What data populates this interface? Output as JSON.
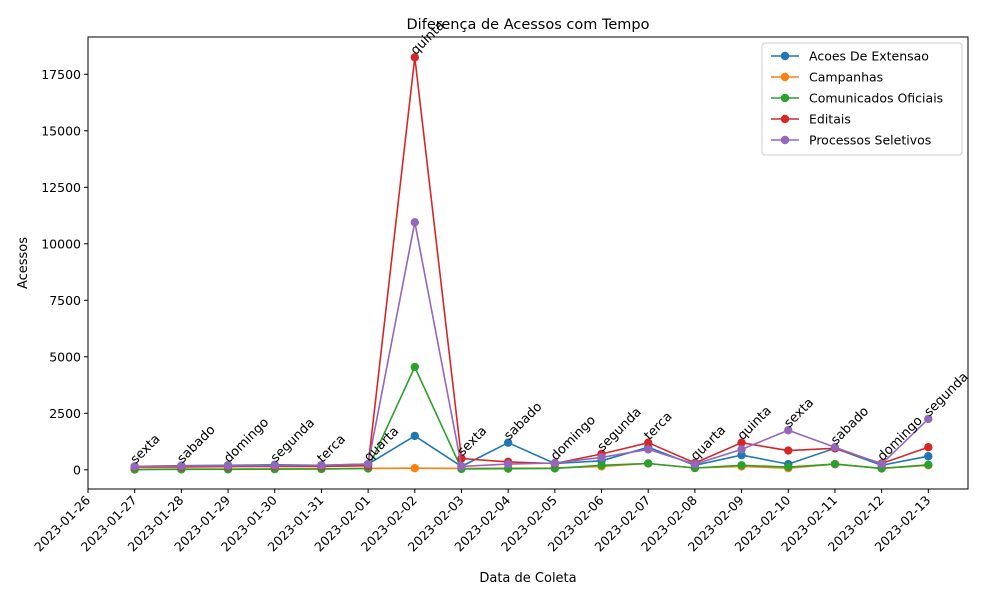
{
  "chart_data": {
    "type": "line",
    "title": "Diferença de Acessos com Tempo",
    "xlabel": "Data de Coleta",
    "ylabel": "Acessos",
    "x_ticks": [
      "2023-01-26",
      "2023-01-27",
      "2023-01-28",
      "2023-01-29",
      "2023-01-30",
      "2023-01-31",
      "2023-02-01",
      "2023-02-02",
      "2023-02-03",
      "2023-02-04",
      "2023-02-05",
      "2023-02-06",
      "2023-02-07",
      "2023-02-08",
      "2023-02-09",
      "2023-02-10",
      "2023-02-11",
      "2023-02-12",
      "2023-02-13"
    ],
    "y_ticks": [
      "0",
      "2500",
      "5000",
      "7500",
      "10000",
      "12500",
      "15000",
      "17500"
    ],
    "x": [
      "2023-01-27",
      "2023-01-28",
      "2023-01-29",
      "2023-01-30",
      "2023-01-31",
      "2023-02-01",
      "2023-02-02",
      "2023-02-03",
      "2023-02-04",
      "2023-02-05",
      "2023-02-06",
      "2023-02-07",
      "2023-02-08",
      "2023-02-09",
      "2023-02-10",
      "2023-02-11",
      "2023-02-12",
      "2023-02-13"
    ],
    "day_labels": [
      "sexta",
      "sabado",
      "domingo",
      "segunda",
      "terca",
      "quarta",
      "quinta",
      "sexta",
      "sabado",
      "domingo",
      "segunda",
      "terca",
      "quarta",
      "quinta",
      "sexta",
      "sabado",
      "domingo",
      "segunda"
    ],
    "ylim": [
      -850,
      19150
    ],
    "legend_position": "top-right",
    "grid": false,
    "series": [
      {
        "name": "Acoes De Extensao",
        "color": "#1f77b4",
        "values": [
          150,
          180,
          200,
          220,
          200,
          250,
          1500,
          150,
          1200,
          280,
          400,
          1000,
          200,
          650,
          250,
          950,
          200,
          600
        ]
      },
      {
        "name": "Campanhas",
        "color": "#ff7f0e",
        "values": [
          20,
          30,
          30,
          40,
          40,
          60,
          70,
          60,
          70,
          80,
          150,
          280,
          80,
          150,
          70,
          250,
          60,
          200
        ]
      },
      {
        "name": "Comunicados Oficiais",
        "color": "#2ca02c",
        "values": [
          10,
          20,
          20,
          30,
          40,
          60,
          4550,
          40,
          50,
          60,
          200,
          280,
          80,
          200,
          120,
          250,
          60,
          220
        ]
      },
      {
        "name": "Editais",
        "color": "#d62728",
        "values": [
          120,
          130,
          140,
          150,
          150,
          180,
          18250,
          500,
          350,
          280,
          700,
          1200,
          300,
          1200,
          850,
          950,
          280,
          1000
        ]
      },
      {
        "name": "Processos Seletivos",
        "color": "#9467bd",
        "values": [
          150,
          170,
          180,
          190,
          200,
          250,
          10950,
          150,
          250,
          300,
          550,
          900,
          250,
          900,
          1750,
          1000,
          250,
          2250
        ]
      }
    ]
  }
}
